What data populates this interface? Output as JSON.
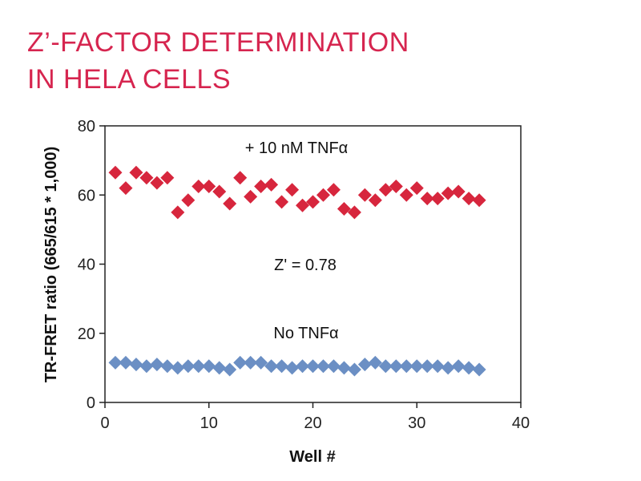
{
  "chart_data": {
    "type": "scatter",
    "title": "Z’-FACTOR DETERMINATION IN HELA CELLS",
    "title_lines": [
      "Z’-FACTOR DETERMINATION",
      "IN HELA CELLS"
    ],
    "xlabel": "Well #",
    "ylabel": "TR-FRET ratio (665/615 * 1,000)",
    "xlim": [
      0,
      40
    ],
    "ylim": [
      0,
      80
    ],
    "xticks": [
      0,
      10,
      20,
      30,
      40
    ],
    "yticks": [
      0,
      20,
      40,
      60,
      80
    ],
    "annotations": [
      "+ 10 nM TNFα",
      "Z' = 0.78",
      "No TNFα"
    ],
    "series": [
      {
        "name": "+ 10 nM TNFα",
        "color": "#d7263d",
        "x": [
          1,
          2,
          3,
          4,
          5,
          6,
          7,
          8,
          9,
          10,
          11,
          12,
          13,
          14,
          15,
          16,
          17,
          18,
          19,
          20,
          21,
          22,
          23,
          24,
          25,
          26,
          27,
          28,
          29,
          30,
          31,
          32,
          33,
          34,
          35,
          36
        ],
        "y": [
          66.5,
          62,
          66.5,
          65,
          63.5,
          65,
          55,
          58.5,
          62.5,
          62.5,
          61,
          57.5,
          65,
          59.5,
          62.5,
          63,
          58,
          61.5,
          57,
          58,
          60,
          61.5,
          56,
          55,
          60,
          58.5,
          61.5,
          62.5,
          60,
          62,
          59,
          59,
          60.5,
          61,
          59,
          58.5
        ]
      },
      {
        "name": "No TNFα",
        "color": "#6b8fc4",
        "x": [
          1,
          2,
          3,
          4,
          5,
          6,
          7,
          8,
          9,
          10,
          11,
          12,
          13,
          14,
          15,
          16,
          17,
          18,
          19,
          20,
          21,
          22,
          23,
          24,
          25,
          26,
          27,
          28,
          29,
          30,
          31,
          32,
          33,
          34,
          35,
          36
        ],
        "y": [
          11.5,
          11.5,
          11,
          10.5,
          11,
          10.5,
          10,
          10.5,
          10.5,
          10.5,
          10,
          9.5,
          11.5,
          11.5,
          11.5,
          10.5,
          10.5,
          10,
          10.5,
          10.5,
          10.5,
          10.5,
          10,
          9.5,
          11,
          11.5,
          10.5,
          10.5,
          10.5,
          10.5,
          10.5,
          10.5,
          10,
          10.5,
          10,
          9.5
        ]
      }
    ]
  }
}
